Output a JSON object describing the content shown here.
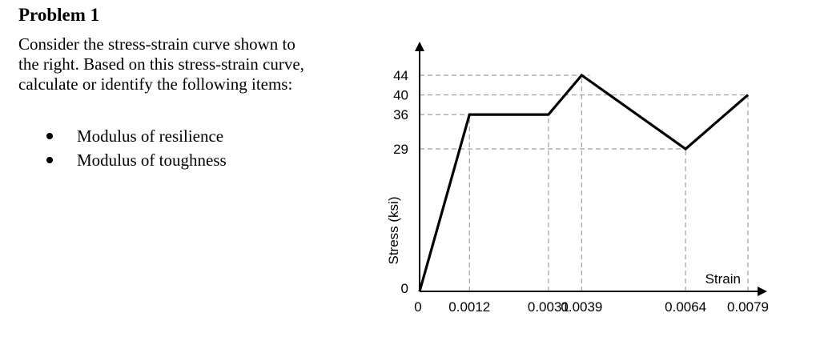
{
  "problem": {
    "title": "Problem 1",
    "intro_lines": [
      "Consider the stress-strain curve shown to",
      "the right.  Based on this stress-strain curve,",
      "calculate or identify the following items:"
    ],
    "items": [
      "Modulus of resilience",
      "Modulus of toughness"
    ]
  },
  "chart_data": {
    "type": "line",
    "xlabel": "Strain",
    "ylabel": "Stress (ksi)",
    "x": [
      0,
      0.0012,
      0.0031,
      0.0039,
      0.0064,
      0.0079
    ],
    "y": [
      0,
      36,
      36,
      44,
      29,
      40
    ],
    "x_tick_labels": [
      "0",
      "0.0012",
      "0.0031",
      "0.0039",
      "0.0064",
      "0.0079"
    ],
    "y_tick_labels": [
      "0",
      "29",
      "36",
      "40",
      "44"
    ],
    "y_ticks": [
      0,
      29,
      36,
      40,
      44
    ],
    "ylim": [
      0,
      44
    ],
    "gridlines": "dashed reference lines at each labeled point",
    "line_color": "#000000",
    "grid_color": "#a8a8a8"
  }
}
